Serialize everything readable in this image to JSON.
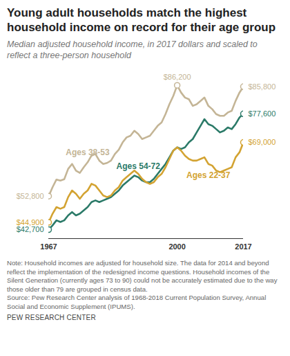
{
  "chart_data": {
    "type": "line",
    "title": "Young adult households match the highest household income on record for their age group",
    "subtitle": "Median adjusted household income, in 2017 dollars and scaled to reflect a three-person household",
    "note": "Note: Household incomes are adjusted for household size. The data for 2014 and beyond reflect the implementation of the redesigned income questions. Household incomes of the Silent Generation (currently ages 73 to 90) could not be accurately estimated due to the way those older than 79 are grouped in census data.",
    "source": "Source: Pew Research Center analysis of 1968-2018 Current Population Survey, Annual Social and Economic Supplement (IPUMS).",
    "credit": "PEW RESEARCH CENTER",
    "x": [
      1967,
      1968,
      1969,
      1970,
      1971,
      1972,
      1973,
      1974,
      1975,
      1976,
      1977,
      1978,
      1979,
      1980,
      1981,
      1982,
      1983,
      1984,
      1985,
      1986,
      1987,
      1988,
      1989,
      1990,
      1991,
      1992,
      1993,
      1994,
      1995,
      1996,
      1997,
      1998,
      1999,
      2000,
      2001,
      2002,
      2003,
      2004,
      2005,
      2006,
      2007,
      2008,
      2009,
      2010,
      2011,
      2012,
      2013,
      2014,
      2015,
      2016,
      2017
    ],
    "xlim": [
      1967,
      2017
    ],
    "xticks": [
      1967,
      2000,
      2017
    ],
    "ylim": [
      40000,
      88000
    ],
    "yticks": [],
    "tick_labels": "x",
    "grid": false,
    "series": [
      {
        "name": "Ages 38-53",
        "color": "#c4b596",
        "values": [
          52800,
          55500,
          57800,
          57500,
          57900,
          61000,
          62500,
          60500,
          59800,
          61500,
          63000,
          65000,
          65500,
          63500,
          62500,
          62800,
          63500,
          65500,
          66800,
          69000,
          70500,
          71000,
          72500,
          71500,
          70000,
          70500,
          71000,
          72500,
          74000,
          75000,
          77500,
          80500,
          83000,
          86200,
          84000,
          82500,
          82000,
          80000,
          80500,
          81500,
          82500,
          80000,
          79000,
          77500,
          77000,
          77000,
          78000,
          78500,
          81500,
          84000,
          85800
        ]
      },
      {
        "name": "Ages 54-72",
        "color": "#2b7a68",
        "values": [
          42700,
          44000,
          45500,
          45000,
          45500,
          47000,
          48000,
          47000,
          47500,
          48500,
          49500,
          51000,
          51500,
          51000,
          51500,
          52000,
          52500,
          53500,
          54500,
          56000,
          57000,
          58000,
          59000,
          58500,
          57500,
          57000,
          57000,
          58000,
          59500,
          61000,
          62500,
          64500,
          66500,
          67500,
          67000,
          67500,
          69000,
          70000,
          72000,
          74000,
          76000,
          74500,
          74000,
          73000,
          72000,
          72500,
          73500,
          73000,
          74500,
          76500,
          77600
        ]
      },
      {
        "name": "Ages 22-37",
        "color": "#d3a332",
        "values": [
          44900,
          47500,
          49500,
          49000,
          49500,
          52500,
          54500,
          53500,
          52000,
          53500,
          54500,
          56500,
          56000,
          54500,
          53000,
          52500,
          53000,
          54500,
          55500,
          57500,
          58500,
          59500,
          60500,
          59500,
          58000,
          57000,
          56500,
          57000,
          58500,
          59500,
          61500,
          64000,
          66500,
          67500,
          66500,
          65000,
          64000,
          63500,
          63500,
          64000,
          64500,
          62500,
          62000,
          60500,
          60000,
          60500,
          61000,
          61500,
          64500,
          66000,
          69000
        ]
      }
    ],
    "annotations": [
      {
        "series": "Ages 38-53",
        "x": 1967,
        "y": 52800,
        "text": "$52,800"
      },
      {
        "series": "Ages 22-37",
        "x": 1967,
        "y": 44900,
        "text": "$44,900"
      },
      {
        "series": "Ages 54-72",
        "x": 1967,
        "y": 42700,
        "text": "$42,700"
      },
      {
        "series": "Ages 38-53",
        "x": 2000,
        "y": 86200,
        "text": "$86,200"
      },
      {
        "series": "Ages 38-53",
        "x": 2017,
        "y": 85800,
        "text": "$85,800"
      },
      {
        "series": "Ages 54-72",
        "x": 2017,
        "y": 77600,
        "text": "$77,600"
      },
      {
        "series": "Ages 22-37",
        "x": 2017,
        "y": 69000,
        "text": "$69,000"
      }
    ]
  }
}
